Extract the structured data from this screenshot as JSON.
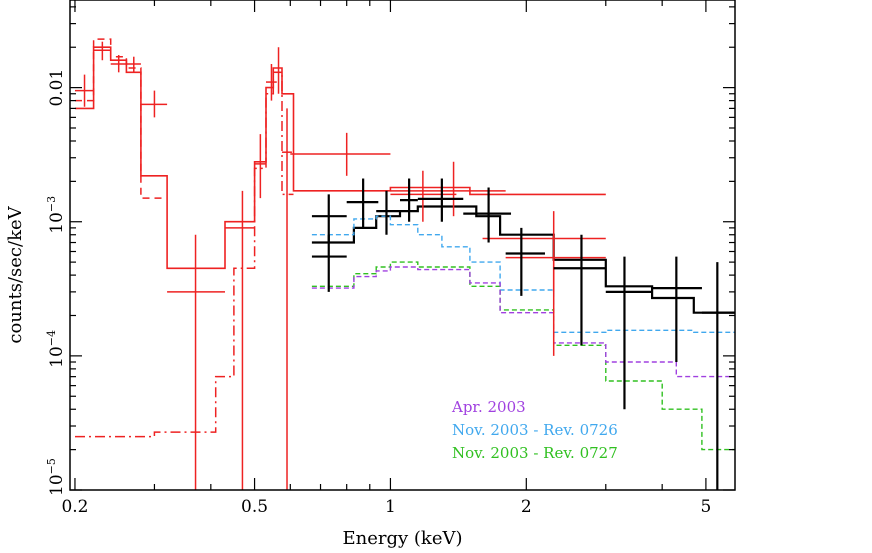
{
  "chart_data": {
    "type": "line",
    "title": "",
    "xlabel": "Energy (keV)",
    "ylabel": "counts/sec/keV",
    "x_scale": "log",
    "y_scale": "log",
    "xlim": [
      0.195,
      5.8
    ],
    "ylim": [
      1e-05,
      0.045
    ],
    "x_ticks": [
      {
        "value": 0.2,
        "label": "0.2"
      },
      {
        "value": 0.5,
        "label": "0.5"
      },
      {
        "value": 1,
        "label": "1"
      },
      {
        "value": 2,
        "label": "2"
      },
      {
        "value": 5,
        "label": "5"
      }
    ],
    "y_ticks": [
      {
        "value": 1e-05,
        "label": "10",
        "exp": "−5"
      },
      {
        "value": 0.0001,
        "label": "10",
        "exp": "−4"
      },
      {
        "value": 0.001,
        "label": "10",
        "exp": "−3"
      },
      {
        "value": 0.01,
        "label": "0.01",
        "exp": ""
      }
    ],
    "legend": [
      {
        "label": "Apr. 2003",
        "color": "#a040e0"
      },
      {
        "label": "Nov. 2003 - Rev. 0726",
        "color": "#40a8ee"
      },
      {
        "label": "Nov. 2003 - Rev. 0727",
        "color": "#30c020"
      }
    ],
    "model_series": [
      {
        "name": "red total model",
        "color": "#ee2222",
        "dash": "",
        "width": 1.6,
        "edges": [
          0.2,
          0.22,
          0.24,
          0.26,
          0.28,
          0.32,
          0.38,
          0.43,
          0.5,
          0.53,
          0.55,
          0.575,
          0.61,
          0.67,
          1.0,
          1.5,
          3.0
        ],
        "values": [
          0.007,
          0.02,
          0.016,
          0.013,
          0.0022,
          0.00045,
          0.00045,
          0.001,
          0.0028,
          0.01,
          0.014,
          0.009,
          0.0017,
          0.0017,
          0.0018,
          0.0016
        ]
      },
      {
        "name": "red dashed component",
        "color": "#ee2222",
        "dash": "7,5",
        "width": 1.5,
        "edges": [
          0.2,
          0.22,
          0.24,
          0.26,
          0.28,
          0.32
        ],
        "values": [
          0.008,
          0.023,
          0.017,
          0.014,
          0.0015
        ]
      },
      {
        "name": "red dash-dot component",
        "color": "#ee2222",
        "dash": "10,4,2,4",
        "width": 1.5,
        "edges": [
          0.2,
          0.3,
          0.41,
          0.45,
          0.5,
          0.53,
          0.55,
          0.575,
          0.61
        ],
        "values": [
          2.5e-05,
          2.7e-05,
          7e-05,
          0.00045,
          0.0025,
          0.009,
          0.013,
          0.0016
        ]
      },
      {
        "name": "black model",
        "color": "#000000",
        "dash": "",
        "width": 2.2,
        "edges": [
          0.67,
          0.83,
          0.93,
          1.05,
          1.15,
          1.35,
          1.55,
          1.75,
          2.3,
          3.0,
          3.8,
          4.7,
          5.8
        ],
        "values": [
          0.0007,
          0.0009,
          0.0011,
          0.0012,
          0.0013,
          0.0013,
          0.0011,
          0.0008,
          0.00052,
          0.00033,
          0.00027,
          0.00021
        ]
      },
      {
        "name": "Nov. 2003 - Rev. 0726 model",
        "color": "#40a8ee",
        "dash": "5,3",
        "width": 1.4,
        "edges": [
          0.67,
          0.83,
          0.93,
          1.0,
          1.15,
          1.3,
          1.5,
          1.75,
          2.3,
          3.0,
          4.7,
          5.8
        ],
        "values": [
          0.0008,
          0.00105,
          0.0011,
          0.00095,
          0.0008,
          0.00065,
          0.0005,
          0.00031,
          0.00015,
          0.000155,
          0.00015
        ]
      },
      {
        "name": "Nov. 2003 - Rev. 0727 model",
        "color": "#30c020",
        "dash": "5,3",
        "width": 1.4,
        "edges": [
          0.67,
          0.83,
          0.93,
          1.0,
          1.15,
          1.5,
          1.75,
          2.3,
          3.0,
          4.0,
          4.9,
          5.8
        ],
        "values": [
          0.00033,
          0.00041,
          0.00046,
          0.0005,
          0.00046,
          0.00033,
          0.00022,
          0.00012,
          6.5e-05,
          4e-05,
          2e-05
        ]
      },
      {
        "name": "Apr. 2003 model",
        "color": "#a040e0",
        "dash": "5,3",
        "width": 1.4,
        "edges": [
          0.67,
          0.83,
          0.93,
          1.0,
          1.15,
          1.5,
          1.75,
          2.3,
          3.0,
          4.3,
          5.8
        ],
        "values": [
          0.00032,
          0.00039,
          0.00043,
          0.00046,
          0.00044,
          0.00035,
          0.00021,
          0.000125,
          9e-05,
          7e-05
        ]
      }
    ],
    "data_points": [
      {
        "name": "red data",
        "color": "#ee2222",
        "points": [
          {
            "x": 0.21,
            "xlo": 0.2,
            "xhi": 0.22,
            "y": 0.0095,
            "ylo": 0.0072,
            "yhi": 0.0125
          },
          {
            "x": 0.23,
            "xlo": 0.22,
            "xhi": 0.24,
            "y": 0.019,
            "ylo": 0.016,
            "yhi": 0.022
          },
          {
            "x": 0.25,
            "xlo": 0.24,
            "xhi": 0.26,
            "y": 0.015,
            "ylo": 0.013,
            "yhi": 0.0175
          },
          {
            "x": 0.27,
            "xlo": 0.26,
            "xhi": 0.28,
            "y": 0.015,
            "ylo": 0.013,
            "yhi": 0.017
          },
          {
            "x": 0.3,
            "xlo": 0.28,
            "xhi": 0.32,
            "y": 0.0075,
            "ylo": 0.006,
            "yhi": 0.0095
          },
          {
            "x": 0.37,
            "xlo": 0.32,
            "xhi": 0.43,
            "y": 0.0003,
            "ylo": 1e-05,
            "yhi": 0.0008
          },
          {
            "x": 0.47,
            "xlo": 0.43,
            "xhi": 0.5,
            "y": 0.0009,
            "ylo": 1e-05,
            "yhi": 0.0017
          },
          {
            "x": 0.515,
            "xlo": 0.5,
            "xhi": 0.53,
            "y": 0.0027,
            "ylo": 0.0015,
            "yhi": 0.0045
          },
          {
            "x": 0.545,
            "xlo": 0.53,
            "xhi": 0.56,
            "y": 0.011,
            "ylo": 0.008,
            "yhi": 0.015
          },
          {
            "x": 0.565,
            "xlo": 0.555,
            "xhi": 0.575,
            "y": 0.013,
            "ylo": 0.009,
            "yhi": 0.02
          },
          {
            "x": 0.59,
            "xlo": 0.575,
            "xhi": 0.605,
            "y": 0.0033,
            "ylo": 1e-05,
            "yhi": 0.007
          },
          {
            "x": 0.8,
            "xlo": 0.6,
            "xhi": 1.0,
            "y": 0.0032,
            "ylo": 0.0022,
            "yhi": 0.0046
          },
          {
            "x": 1.18,
            "xlo": 1.0,
            "xhi": 1.4,
            "y": 0.0016,
            "ylo": 0.001,
            "yhi": 0.0024
          },
          {
            "x": 1.38,
            "xlo": 1.0,
            "xhi": 1.8,
            "y": 0.0017,
            "ylo": 0.0011,
            "yhi": 0.0028
          },
          {
            "x": 2.3,
            "xlo": 1.6,
            "xhi": 3.0,
            "y": 0.00075,
            "ylo": 0.0001,
            "yhi": 0.0012
          },
          {
            "x": 2.3,
            "xlo": 1.8,
            "xhi": 3.0,
            "y": 0.00054,
            "ylo": 0.0003,
            "yhi": 0.0008
          }
        ]
      },
      {
        "name": "black data",
        "color": "#000000",
        "points": [
          {
            "x": 0.73,
            "xlo": 0.67,
            "xhi": 0.8,
            "y": 0.0011,
            "ylo": 0.0007,
            "yhi": 0.0016
          },
          {
            "x": 0.73,
            "xlo": 0.67,
            "xhi": 0.8,
            "y": 0.00055,
            "ylo": 0.0003,
            "yhi": 0.0008
          },
          {
            "x": 0.87,
            "xlo": 0.8,
            "xhi": 0.94,
            "y": 0.0014,
            "ylo": 0.0009,
            "yhi": 0.0021
          },
          {
            "x": 0.98,
            "xlo": 0.93,
            "xhi": 1.05,
            "y": 0.0012,
            "ylo": 0.0008,
            "yhi": 0.0017
          },
          {
            "x": 1.1,
            "xlo": 1.05,
            "xhi": 1.15,
            "y": 0.00145,
            "ylo": 0.001,
            "yhi": 0.0021
          },
          {
            "x": 1.3,
            "xlo": 1.15,
            "xhi": 1.45,
            "y": 0.00148,
            "ylo": 0.001,
            "yhi": 0.0021
          },
          {
            "x": 1.65,
            "xlo": 1.45,
            "xhi": 1.85,
            "y": 0.00115,
            "ylo": 0.0007,
            "yhi": 0.0018
          },
          {
            "x": 1.95,
            "xlo": 1.8,
            "xhi": 2.2,
            "y": 0.00058,
            "ylo": 0.00028,
            "yhi": 0.0009
          },
          {
            "x": 2.65,
            "xlo": 2.3,
            "xhi": 3.0,
            "y": 0.00045,
            "ylo": 0.00012,
            "yhi": 0.0008
          },
          {
            "x": 3.3,
            "xlo": 3.0,
            "xhi": 3.8,
            "y": 0.0003,
            "ylo": 4e-05,
            "yhi": 0.00055
          },
          {
            "x": 4.3,
            "xlo": 3.8,
            "xhi": 4.9,
            "y": 0.00032,
            "ylo": 9e-05,
            "yhi": 0.00055
          },
          {
            "x": 5.3,
            "xlo": 4.9,
            "xhi": 5.8,
            "y": 0.00021,
            "ylo": 1e-05,
            "yhi": 0.0005
          }
        ]
      }
    ]
  }
}
